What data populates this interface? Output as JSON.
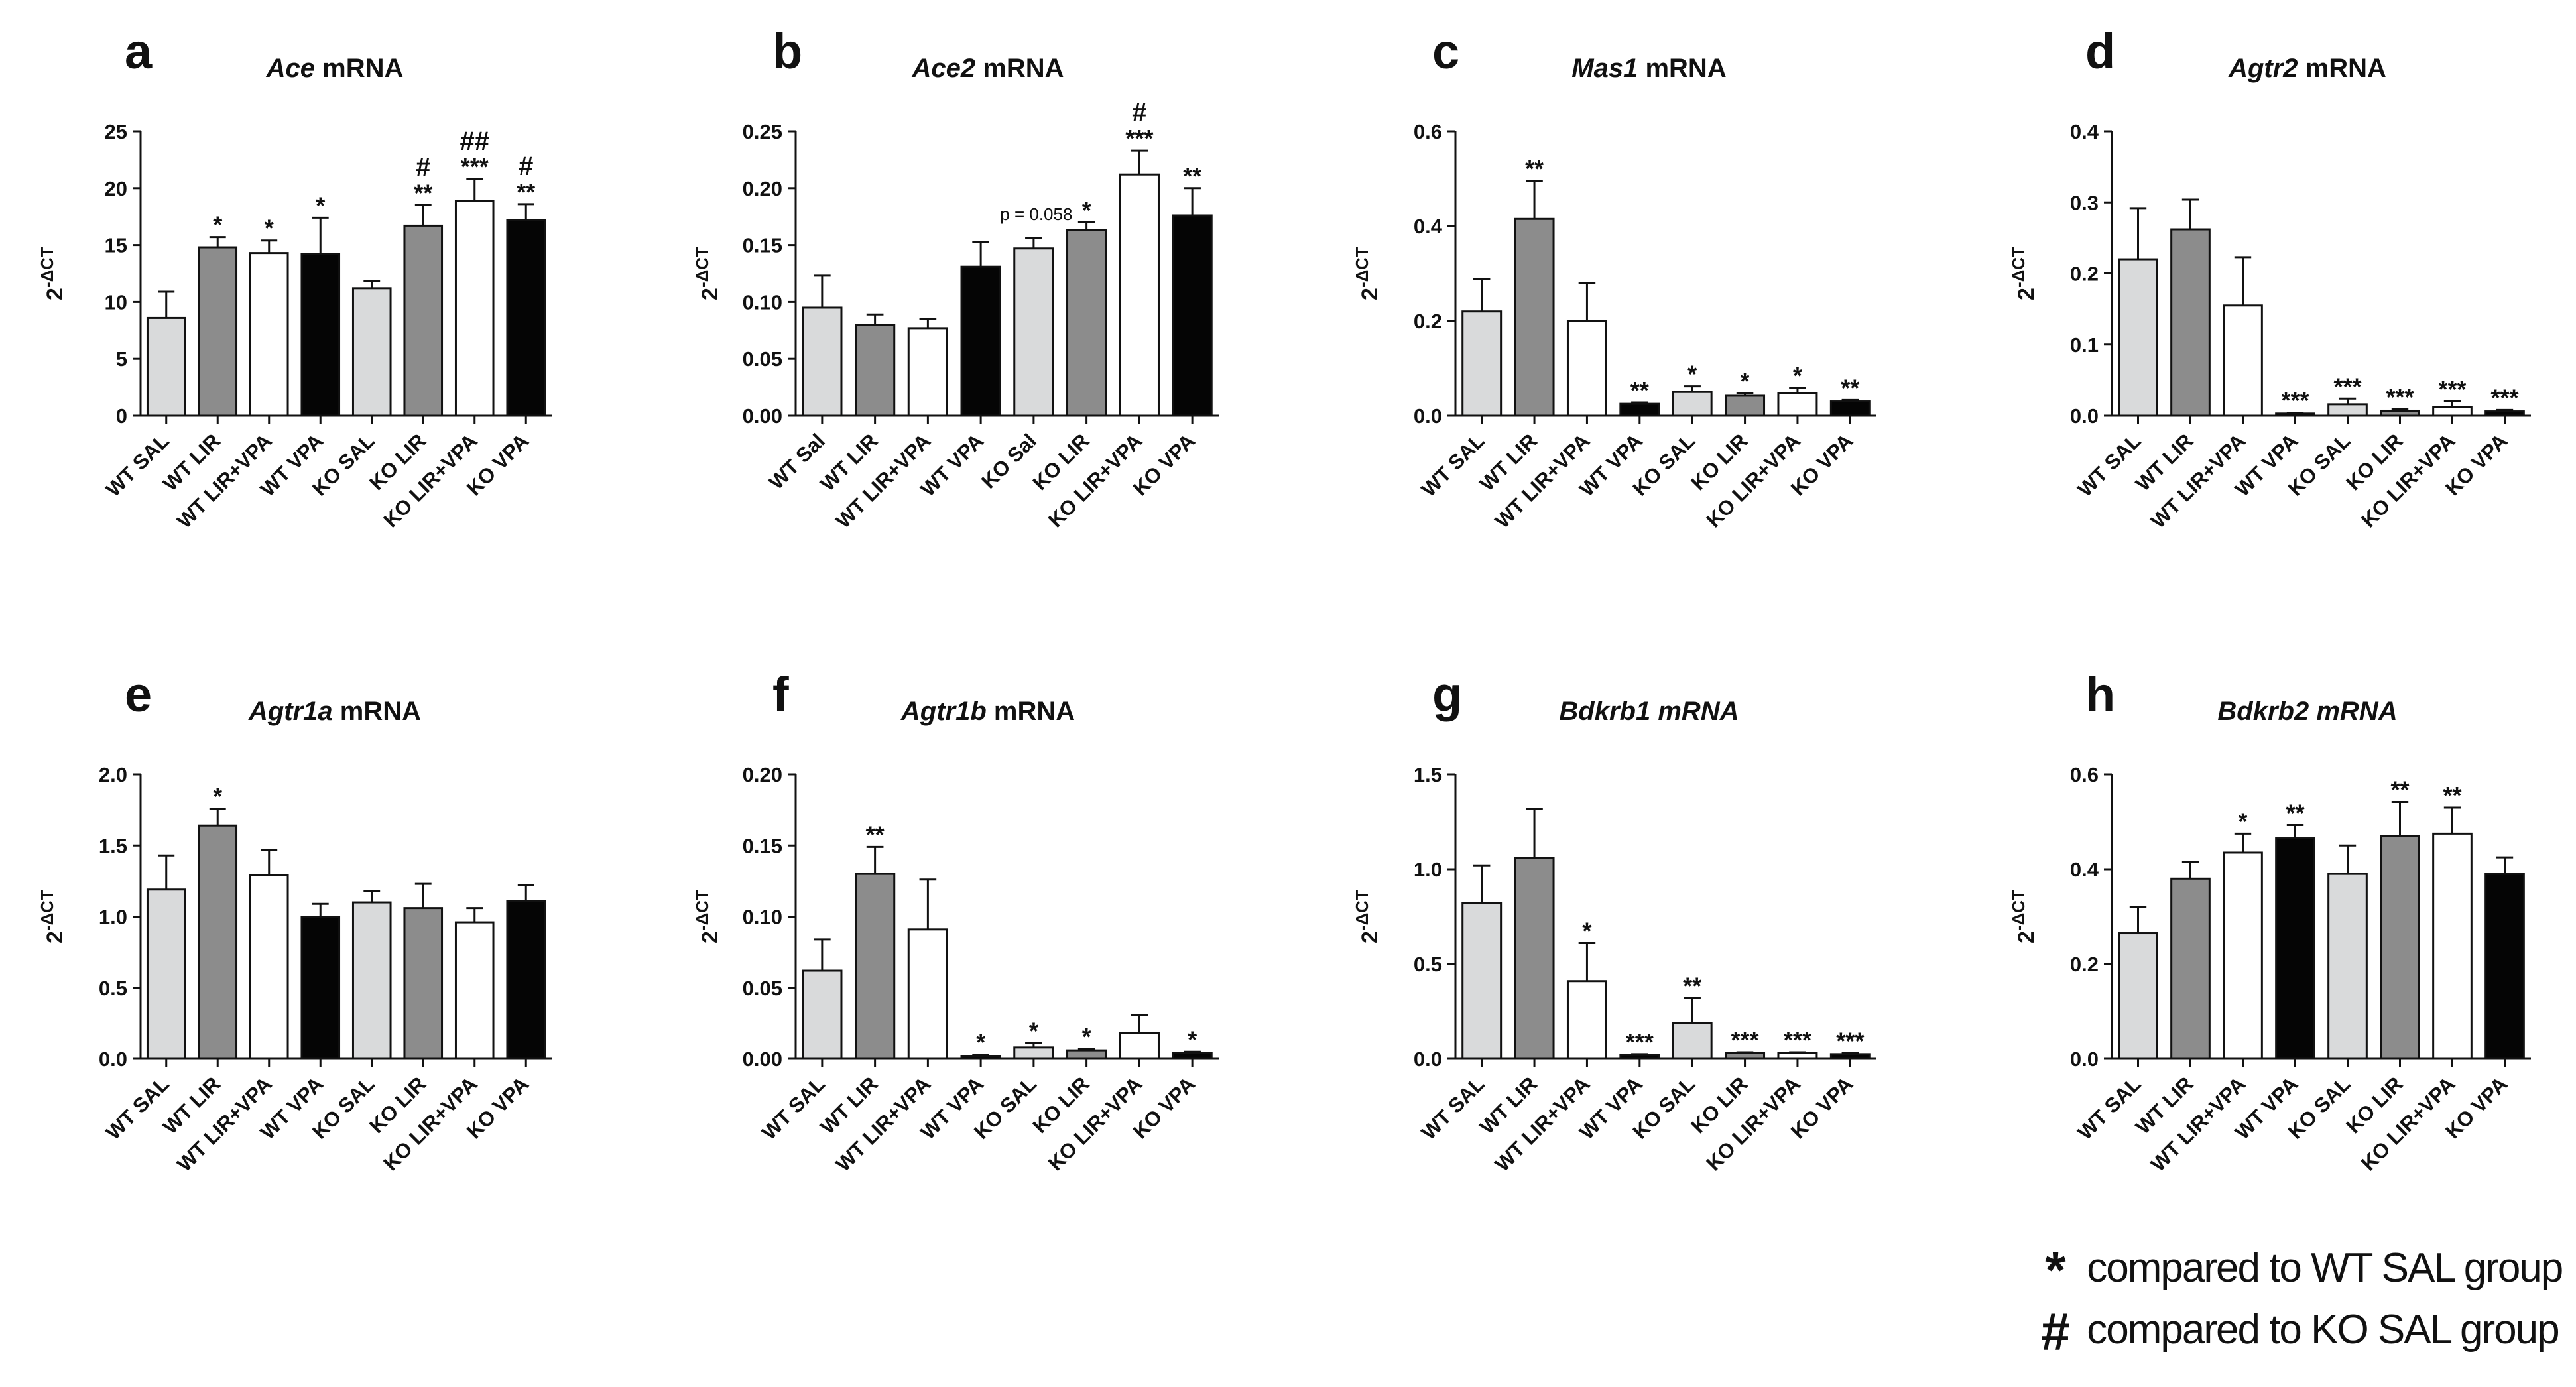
{
  "chart_data": [
    {
      "panel": "a",
      "type": "bar",
      "title_italic": "Ace",
      "title_rest": " mRNA",
      "ylabel": "2-ΔCT",
      "ylim": [
        0,
        25
      ],
      "yticks": [
        0,
        5,
        10,
        15,
        20,
        25
      ],
      "ytick_labels": [
        "0",
        "5",
        "10",
        "15",
        "20",
        "25"
      ],
      "categories": [
        "WT SAL",
        "WT LIR",
        "WT LIR+VPA",
        "WT VPA",
        "KO SAL",
        "KO LIR",
        "KO LIR+VPA",
        "KO VPA"
      ],
      "values": [
        8.6,
        14.8,
        14.3,
        14.2,
        11.2,
        16.7,
        18.9,
        17.2
      ],
      "errors": [
        2.3,
        0.9,
        1.1,
        3.2,
        0.6,
        1.8,
        1.9,
        1.4
      ],
      "fills": [
        "light",
        "mid",
        "white",
        "black",
        "light",
        "mid",
        "white",
        "black"
      ],
      "significance": [
        "",
        "*",
        "*",
        "*",
        "",
        "**",
        "***",
        "**"
      ],
      "hash": [
        "",
        "",
        "",
        "",
        "",
        "#",
        "##",
        "#"
      ]
    },
    {
      "panel": "b",
      "type": "bar",
      "title_italic": "Ace2",
      "title_rest": " mRNA",
      "ylabel": "2-ΔCT",
      "ylim": [
        0,
        0.25
      ],
      "yticks": [
        0,
        0.05,
        0.1,
        0.15,
        0.2,
        0.25
      ],
      "ytick_labels": [
        "0.00",
        "0.05",
        "0.10",
        "0.15",
        "0.20",
        "0.25"
      ],
      "categories": [
        "WT Sal",
        "WT LIR",
        "WT LIR+VPA",
        "WT VPA",
        "KO Sal",
        "KO LIR",
        "KO LIR+VPA",
        "KO VPA"
      ],
      "values": [
        0.095,
        0.08,
        0.077,
        0.131,
        0.147,
        0.163,
        0.212,
        0.176
      ],
      "errors": [
        0.028,
        0.009,
        0.008,
        0.022,
        0.009,
        0.007,
        0.021,
        0.024
      ],
      "fills": [
        "light",
        "mid",
        "white",
        "black",
        "light",
        "mid",
        "white",
        "black"
      ],
      "significance": [
        "",
        "",
        "",
        "",
        "",
        "*",
        "***",
        "**"
      ],
      "hash": [
        "",
        "",
        "",
        "",
        "",
        "",
        "#",
        ""
      ],
      "annotation": "p = 0.058"
    },
    {
      "panel": "c",
      "type": "bar",
      "title_italic": "Mas1",
      "title_rest": " mRNA",
      "ylabel": "2-ΔCT",
      "ylim": [
        0,
        0.6
      ],
      "yticks": [
        0,
        0.2,
        0.4,
        0.6
      ],
      "ytick_labels": [
        "0.0",
        "0.2",
        "0.4",
        "0.6"
      ],
      "categories": [
        "WT SAL",
        "WT LIR",
        "WT LIR+VPA",
        "WT VPA",
        "KO SAL",
        "KO LIR",
        "KO LIR+VPA",
        "KO VPA"
      ],
      "values": [
        0.22,
        0.415,
        0.2,
        0.025,
        0.05,
        0.042,
        0.047,
        0.03
      ],
      "errors": [
        0.068,
        0.08,
        0.08,
        0.003,
        0.012,
        0.005,
        0.012,
        0.003
      ],
      "fills": [
        "light",
        "mid",
        "white",
        "black",
        "light",
        "mid",
        "white",
        "black"
      ],
      "significance": [
        "",
        "**",
        "",
        "**",
        "*",
        "*",
        "*",
        "**"
      ],
      "hash": [
        "",
        "",
        "",
        "",
        "",
        "",
        "",
        ""
      ]
    },
    {
      "panel": "d",
      "type": "bar",
      "title_italic": "Agtr2",
      "title_rest": " mRNA",
      "ylabel": "2-ΔCT",
      "ylim": [
        0,
        0.4
      ],
      "yticks": [
        0,
        0.1,
        0.2,
        0.3,
        0.4
      ],
      "ytick_labels": [
        "0.0",
        "0.1",
        "0.2",
        "0.3",
        "0.4"
      ],
      "categories": [
        "WT SAL",
        "WT LIR",
        "WT LIR+VPA",
        "WT VPA",
        "KO SAL",
        "KO LIR",
        "KO LIR+VPA",
        "KO VPA"
      ],
      "values": [
        0.22,
        0.262,
        0.155,
        0.003,
        0.016,
        0.007,
        0.012,
        0.006
      ],
      "errors": [
        0.072,
        0.042,
        0.068,
        0.001,
        0.008,
        0.002,
        0.008,
        0.002
      ],
      "fills": [
        "light",
        "mid",
        "white",
        "black",
        "light",
        "mid",
        "white",
        "black"
      ],
      "significance": [
        "",
        "",
        "",
        "***",
        "***",
        "***",
        "***",
        "***"
      ],
      "hash": [
        "",
        "",
        "",
        "",
        "",
        "",
        "",
        ""
      ]
    },
    {
      "panel": "e",
      "type": "bar",
      "title_italic": "Agtr1a",
      "title_rest": " mRNA",
      "ylabel": "2-ΔCT",
      "ylim": [
        0,
        2.0
      ],
      "yticks": [
        0,
        0.5,
        1.0,
        1.5,
        2.0
      ],
      "ytick_labels": [
        "0.0",
        "0.5",
        "1.0",
        "1.5",
        "2.0"
      ],
      "categories": [
        "WT SAL",
        "WT LIR",
        "WT LIR+VPA",
        "WT VPA",
        "KO SAL",
        "KO LIR",
        "KO LIR+VPA",
        "KO VPA"
      ],
      "values": [
        1.19,
        1.64,
        1.29,
        1.0,
        1.1,
        1.06,
        0.96,
        1.11
      ],
      "errors": [
        0.24,
        0.12,
        0.18,
        0.09,
        0.08,
        0.17,
        0.1,
        0.11
      ],
      "fills": [
        "light",
        "mid",
        "white",
        "black",
        "light",
        "mid",
        "white",
        "black"
      ],
      "significance": [
        "",
        "*",
        "",
        "",
        "",
        "",
        "",
        ""
      ],
      "hash": [
        "",
        "",
        "",
        "",
        "",
        "",
        "",
        ""
      ]
    },
    {
      "panel": "f",
      "type": "bar",
      "title_italic": "Agtr1b",
      "title_rest": " mRNA",
      "ylabel": "2-ΔCT",
      "ylim": [
        0,
        0.2
      ],
      "yticks": [
        0,
        0.05,
        0.1,
        0.15,
        0.2
      ],
      "ytick_labels": [
        "0.00",
        "0.05",
        "0.10",
        "0.15",
        "0.20"
      ],
      "categories": [
        "WT SAL",
        "WT LIR",
        "WT LIR+VPA",
        "WT VPA",
        "KO SAL",
        "KO LIR",
        "KO LIR+VPA",
        "KO VPA"
      ],
      "values": [
        0.062,
        0.13,
        0.091,
        0.002,
        0.008,
        0.006,
        0.018,
        0.004
      ],
      "errors": [
        0.022,
        0.019,
        0.035,
        0.001,
        0.003,
        0.001,
        0.013,
        0.001
      ],
      "fills": [
        "light",
        "mid",
        "white",
        "black",
        "light",
        "mid",
        "white",
        "black"
      ],
      "significance": [
        "",
        "**",
        "",
        "*",
        "*",
        "*",
        "",
        "*"
      ],
      "hash": [
        "",
        "",
        "",
        "",
        "",
        "",
        "",
        ""
      ]
    },
    {
      "panel": "g",
      "type": "bar",
      "title_italic": "Bdkrb1 mRNA",
      "title_rest": "",
      "ylabel": "2-ΔCT",
      "ylim": [
        0,
        1.5
      ],
      "yticks": [
        0,
        0.5,
        1.0,
        1.5
      ],
      "ytick_labels": [
        "0.0",
        "0.5",
        "1.0",
        "1.5"
      ],
      "categories": [
        "WT SAL",
        "WT LIR",
        "WT LIR+VPA",
        "WT VPA",
        "KO SAL",
        "KO LIR",
        "KO LIR+VPA",
        "KO VPA"
      ],
      "values": [
        0.82,
        1.06,
        0.41,
        0.02,
        0.19,
        0.03,
        0.03,
        0.025
      ],
      "errors": [
        0.2,
        0.26,
        0.2,
        0.005,
        0.13,
        0.005,
        0.005,
        0.005
      ],
      "fills": [
        "light",
        "mid",
        "white",
        "black",
        "light",
        "mid",
        "white",
        "black"
      ],
      "significance": [
        "",
        "",
        "*",
        "***",
        "**",
        "***",
        "***",
        "***"
      ],
      "hash": [
        "",
        "",
        "",
        "",
        "",
        "",
        "",
        ""
      ]
    },
    {
      "panel": "h",
      "type": "bar",
      "title_italic": "Bdkrb2 mRNA",
      "title_rest": "",
      "ylabel": "2-ΔCT",
      "ylim": [
        0,
        0.6
      ],
      "yticks": [
        0,
        0.2,
        0.4,
        0.6
      ],
      "ytick_labels": [
        "0.0",
        "0.2",
        "0.4",
        "0.6"
      ],
      "categories": [
        "WT SAL",
        "WT LIR",
        "WT LIR+VPA",
        "WT VPA",
        "KO SAL",
        "KO LIR",
        "KO LIR+VPA",
        "KO VPA"
      ],
      "values": [
        0.265,
        0.38,
        0.435,
        0.465,
        0.39,
        0.47,
        0.475,
        0.39
      ],
      "errors": [
        0.055,
        0.035,
        0.04,
        0.028,
        0.06,
        0.072,
        0.055,
        0.035
      ],
      "fills": [
        "light",
        "mid",
        "white",
        "black",
        "light",
        "mid",
        "white",
        "black"
      ],
      "significance": [
        "",
        "",
        "*",
        "**",
        "",
        "**",
        "**",
        ""
      ],
      "hash": [
        "",
        "",
        "",
        "",
        "",
        "",
        "",
        ""
      ]
    }
  ],
  "fill_colors": {
    "light": "#d9dadb",
    "mid": "#8c8c8c",
    "white": "#ffffff",
    "black": "#050505"
  },
  "legend": {
    "star_symbol": "*",
    "star_text": "compared to WT SAL group",
    "hash_symbol": "#",
    "hash_text": "compared to KO SAL group"
  }
}
